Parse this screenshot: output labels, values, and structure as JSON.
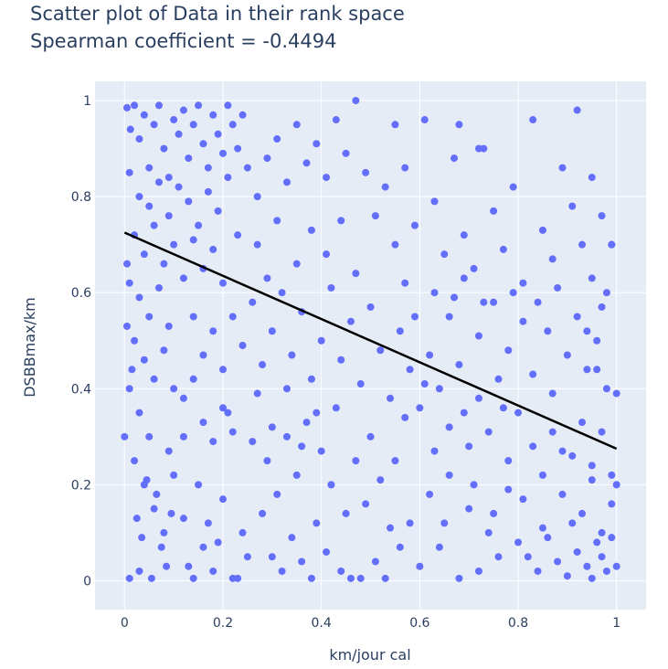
{
  "chart_data": {
    "type": "scatter",
    "title_lines": [
      "Scatter plot of Data in their rank space",
      "Spearman coefficient = -0.4494"
    ],
    "xlabel": "km/jour cal",
    "ylabel": "DSBBmax/km",
    "xlim": [
      -0.06,
      1.06
    ],
    "ylim": [
      -0.06,
      1.04
    ],
    "xticks": [
      0,
      0.2,
      0.4,
      0.6,
      0.8,
      1
    ],
    "xtick_labels": [
      "0",
      "0.2",
      "0.4",
      "0.6",
      "0.8",
      "1"
    ],
    "yticks": [
      0,
      0.2,
      0.4,
      0.6,
      0.8,
      1
    ],
    "ytick_labels": [
      "0",
      "0.2",
      "0.4",
      "0.6",
      "0.8",
      "1"
    ],
    "grid": true,
    "colors": {
      "points": "#636efa",
      "fit_line": "#000000",
      "plot_bg": "#e5ecf6",
      "text": "#2a3f5f"
    },
    "fit_line": {
      "x": [
        0,
        1
      ],
      "y": [
        0.725,
        0.275
      ]
    },
    "points": [
      [
        0.005,
        0.985
      ],
      [
        0.012,
        0.94
      ],
      [
        0.02,
        0.99
      ],
      [
        0.03,
        0.92
      ],
      [
        0.04,
        0.97
      ],
      [
        0.05,
        0.86
      ],
      [
        0.06,
        0.95
      ],
      [
        0.07,
        0.99
      ],
      [
        0.08,
        0.9
      ],
      [
        0.09,
        0.84
      ],
      [
        0.1,
        0.96
      ],
      [
        0.11,
        0.93
      ],
      [
        0.12,
        0.98
      ],
      [
        0.13,
        0.88
      ],
      [
        0.14,
        0.95
      ],
      [
        0.15,
        0.99
      ],
      [
        0.16,
        0.91
      ],
      [
        0.17,
        0.86
      ],
      [
        0.18,
        0.97
      ],
      [
        0.19,
        0.93
      ],
      [
        0.2,
        0.89
      ],
      [
        0.21,
        0.99
      ],
      [
        0.22,
        0.95
      ],
      [
        0.23,
        0.9
      ],
      [
        0.24,
        0.97
      ],
      [
        0.01,
        0.85
      ],
      [
        0.03,
        0.8
      ],
      [
        0.05,
        0.78
      ],
      [
        0.07,
        0.83
      ],
      [
        0.09,
        0.76
      ],
      [
        0.11,
        0.82
      ],
      [
        0.13,
        0.79
      ],
      [
        0.15,
        0.74
      ],
      [
        0.17,
        0.81
      ],
      [
        0.19,
        0.77
      ],
      [
        0.21,
        0.84
      ],
      [
        0.23,
        0.72
      ],
      [
        0.25,
        0.86
      ],
      [
        0.27,
        0.8
      ],
      [
        0.29,
        0.88
      ],
      [
        0.31,
        0.92
      ],
      [
        0.33,
        0.83
      ],
      [
        0.35,
        0.95
      ],
      [
        0.37,
        0.87
      ],
      [
        0.39,
        0.91
      ],
      [
        0.41,
        0.84
      ],
      [
        0.43,
        0.96
      ],
      [
        0.45,
        0.89
      ],
      [
        0.47,
        1.0
      ],
      [
        0.49,
        0.85
      ],
      [
        0.02,
        0.72
      ],
      [
        0.04,
        0.68
      ],
      [
        0.06,
        0.74
      ],
      [
        0.08,
        0.66
      ],
      [
        0.1,
        0.7
      ],
      [
        0.12,
        0.63
      ],
      [
        0.14,
        0.71
      ],
      [
        0.16,
        0.65
      ],
      [
        0.18,
        0.69
      ],
      [
        0.2,
        0.62
      ],
      [
        0.01,
        0.62
      ],
      [
        0.03,
        0.59
      ],
      [
        0.05,
        0.55
      ],
      [
        0.07,
        0.61
      ],
      [
        0.09,
        0.53
      ],
      [
        0.02,
        0.5
      ],
      [
        0.04,
        0.46
      ],
      [
        0.06,
        0.42
      ],
      [
        0.08,
        0.48
      ],
      [
        0.1,
        0.4
      ],
      [
        0.01,
        0.4
      ],
      [
        0.03,
        0.35
      ],
      [
        0.05,
        0.3
      ],
      [
        0.0,
        0.3
      ],
      [
        0.02,
        0.25
      ],
      [
        0.04,
        0.2
      ],
      [
        0.06,
        0.15
      ],
      [
        0.08,
        0.1
      ],
      [
        0.1,
        0.22
      ],
      [
        0.12,
        0.13
      ],
      [
        0.01,
        0.005
      ],
      [
        0.03,
        0.02
      ],
      [
        0.055,
        0.005
      ],
      [
        0.09,
        0.27
      ],
      [
        0.12,
        0.3
      ],
      [
        0.13,
        0.03
      ],
      [
        0.14,
        0.005
      ],
      [
        0.15,
        0.2
      ],
      [
        0.16,
        0.07
      ],
      [
        0.17,
        0.12
      ],
      [
        0.18,
        0.02
      ],
      [
        0.19,
        0.08
      ],
      [
        0.2,
        0.17
      ],
      [
        0.21,
        0.35
      ],
      [
        0.22,
        0.005
      ],
      [
        0.23,
        0.005
      ],
      [
        0.24,
        0.1
      ],
      [
        0.25,
        0.05
      ],
      [
        0.26,
        0.29
      ],
      [
        0.27,
        0.39
      ],
      [
        0.28,
        0.14
      ],
      [
        0.29,
        0.25
      ],
      [
        0.3,
        0.05
      ],
      [
        0.31,
        0.18
      ],
      [
        0.32,
        0.02
      ],
      [
        0.33,
        0.3
      ],
      [
        0.34,
        0.09
      ],
      [
        0.35,
        0.22
      ],
      [
        0.36,
        0.04
      ],
      [
        0.37,
        0.33
      ],
      [
        0.38,
        0.005
      ],
      [
        0.39,
        0.12
      ],
      [
        0.4,
        0.27
      ],
      [
        0.41,
        0.06
      ],
      [
        0.42,
        0.2
      ],
      [
        0.43,
        0.36
      ],
      [
        0.44,
        0.02
      ],
      [
        0.45,
        0.14
      ],
      [
        0.46,
        0.005
      ],
      [
        0.47,
        0.25
      ],
      [
        0.48,
        0.005
      ],
      [
        0.49,
        0.16
      ],
      [
        0.5,
        0.3
      ],
      [
        0.51,
        0.04
      ],
      [
        0.52,
        0.21
      ],
      [
        0.53,
        0.005
      ],
      [
        0.54,
        0.11
      ],
      [
        0.55,
        0.25
      ],
      [
        0.56,
        0.07
      ],
      [
        0.57,
        0.34
      ],
      [
        0.22,
        0.55
      ],
      [
        0.24,
        0.49
      ],
      [
        0.26,
        0.58
      ],
      [
        0.28,
        0.45
      ],
      [
        0.3,
        0.52
      ],
      [
        0.32,
        0.6
      ],
      [
        0.34,
        0.47
      ],
      [
        0.36,
        0.56
      ],
      [
        0.38,
        0.42
      ],
      [
        0.4,
        0.5
      ],
      [
        0.42,
        0.61
      ],
      [
        0.44,
        0.46
      ],
      [
        0.46,
        0.54
      ],
      [
        0.48,
        0.41
      ],
      [
        0.5,
        0.57
      ],
      [
        0.52,
        0.48
      ],
      [
        0.54,
        0.38
      ],
      [
        0.56,
        0.52
      ],
      [
        0.58,
        0.44
      ],
      [
        0.6,
        0.36
      ],
      [
        0.62,
        0.47
      ],
      [
        0.64,
        0.4
      ],
      [
        0.66,
        0.32
      ],
      [
        0.68,
        0.45
      ],
      [
        0.7,
        0.28
      ],
      [
        0.72,
        0.38
      ],
      [
        0.74,
        0.31
      ],
      [
        0.76,
        0.42
      ],
      [
        0.78,
        0.25
      ],
      [
        0.8,
        0.35
      ],
      [
        0.51,
        0.76
      ],
      [
        0.53,
        0.82
      ],
      [
        0.55,
        0.7
      ],
      [
        0.57,
        0.86
      ],
      [
        0.59,
        0.74
      ],
      [
        0.61,
        0.96
      ],
      [
        0.63,
        0.79
      ],
      [
        0.65,
        0.68
      ],
      [
        0.67,
        0.88
      ],
      [
        0.69,
        0.72
      ],
      [
        0.71,
        0.65
      ],
      [
        0.73,
        0.9
      ],
      [
        0.75,
        0.77
      ],
      [
        0.77,
        0.69
      ],
      [
        0.79,
        0.82
      ],
      [
        0.81,
        0.62
      ],
      [
        0.83,
        0.96
      ],
      [
        0.85,
        0.73
      ],
      [
        0.87,
        0.67
      ],
      [
        0.89,
        0.86
      ],
      [
        0.91,
        0.78
      ],
      [
        0.93,
        0.7
      ],
      [
        0.95,
        0.84
      ],
      [
        0.97,
        0.76
      ],
      [
        0.99,
        0.7
      ],
      [
        0.84,
        0.58
      ],
      [
        0.86,
        0.52
      ],
      [
        0.88,
        0.61
      ],
      [
        0.9,
        0.47
      ],
      [
        0.92,
        0.55
      ],
      [
        0.94,
        0.44
      ],
      [
        0.96,
        0.5
      ],
      [
        0.98,
        0.4
      ],
      [
        1.0,
        0.39
      ],
      [
        0.83,
        0.28
      ],
      [
        0.85,
        0.22
      ],
      [
        0.87,
        0.31
      ],
      [
        0.89,
        0.18
      ],
      [
        0.91,
        0.26
      ],
      [
        0.93,
        0.14
      ],
      [
        0.95,
        0.21
      ],
      [
        0.97,
        0.1
      ],
      [
        0.99,
        0.16
      ],
      [
        0.82,
        0.05
      ],
      [
        0.84,
        0.02
      ],
      [
        0.86,
        0.09
      ],
      [
        0.88,
        0.04
      ],
      [
        0.9,
        0.01
      ],
      [
        0.92,
        0.06
      ],
      [
        0.94,
        0.03
      ],
      [
        0.96,
        0.08
      ],
      [
        0.98,
        0.02
      ],
      [
        1.0,
        0.03
      ],
      [
        0.58,
        0.12
      ],
      [
        0.6,
        0.03
      ],
      [
        0.62,
        0.18
      ],
      [
        0.64,
        0.07
      ],
      [
        0.66,
        0.22
      ],
      [
        0.68,
        0.005
      ],
      [
        0.7,
        0.15
      ],
      [
        0.72,
        0.02
      ],
      [
        0.74,
        0.1
      ],
      [
        0.76,
        0.05
      ],
      [
        0.78,
        0.19
      ],
      [
        0.8,
        0.08
      ],
      [
        0.63,
        0.6
      ],
      [
        0.66,
        0.55
      ],
      [
        0.69,
        0.63
      ],
      [
        0.72,
        0.51
      ],
      [
        0.75,
        0.58
      ],
      [
        0.78,
        0.48
      ],
      [
        0.81,
        0.54
      ],
      [
        0.35,
        0.66
      ],
      [
        0.38,
        0.73
      ],
      [
        0.41,
        0.68
      ],
      [
        0.44,
        0.75
      ],
      [
        0.47,
        0.64
      ],
      [
        0.27,
        0.7
      ],
      [
        0.29,
        0.63
      ],
      [
        0.31,
        0.75
      ],
      [
        0.92,
        0.98
      ],
      [
        0.99,
        0.7
      ],
      [
        0.95,
        0.63
      ],
      [
        0.97,
        0.57
      ],
      [
        0.72,
        0.9
      ],
      [
        0.68,
        0.95
      ],
      [
        0.3,
        0.32
      ],
      [
        0.33,
        0.4
      ],
      [
        0.36,
        0.28
      ],
      [
        0.39,
        0.35
      ],
      [
        0.14,
        0.55
      ],
      [
        0.16,
        0.47
      ],
      [
        0.18,
        0.52
      ],
      [
        0.2,
        0.44
      ],
      [
        0.12,
        0.38
      ],
      [
        0.14,
        0.42
      ],
      [
        0.16,
        0.33
      ],
      [
        0.18,
        0.29
      ],
      [
        0.2,
        0.36
      ],
      [
        0.22,
        0.31
      ],
      [
        0.005,
        0.66
      ],
      [
        0.005,
        0.53
      ],
      [
        0.015,
        0.44
      ],
      [
        0.025,
        0.13
      ],
      [
        0.035,
        0.09
      ],
      [
        0.045,
        0.21
      ],
      [
        0.065,
        0.18
      ],
      [
        0.075,
        0.07
      ],
      [
        0.085,
        0.03
      ],
      [
        0.095,
        0.14
      ],
      [
        0.55,
        0.95
      ],
      [
        0.57,
        0.62
      ],
      [
        0.59,
        0.55
      ],
      [
        0.61,
        0.41
      ],
      [
        0.63,
        0.27
      ],
      [
        0.65,
        0.12
      ],
      [
        0.67,
        0.59
      ],
      [
        0.69,
        0.35
      ],
      [
        0.71,
        0.2
      ],
      [
        0.73,
        0.58
      ],
      [
        0.75,
        0.14
      ],
      [
        0.77,
        0.36
      ],
      [
        0.79,
        0.6
      ],
      [
        0.81,
        0.17
      ],
      [
        0.83,
        0.43
      ],
      [
        0.85,
        0.11
      ],
      [
        0.87,
        0.39
      ],
      [
        0.89,
        0.27
      ],
      [
        0.91,
        0.12
      ],
      [
        0.93,
        0.33
      ],
      [
        0.95,
        0.24
      ],
      [
        0.97,
        0.31
      ],
      [
        0.99,
        0.22
      ],
      [
        0.96,
        0.44
      ],
      [
        0.94,
        0.52
      ],
      [
        0.98,
        0.6
      ],
      [
        1.0,
        0.2
      ],
      [
        0.99,
        0.09
      ],
      [
        0.97,
        0.05
      ],
      [
        0.95,
        0.005
      ]
    ]
  }
}
